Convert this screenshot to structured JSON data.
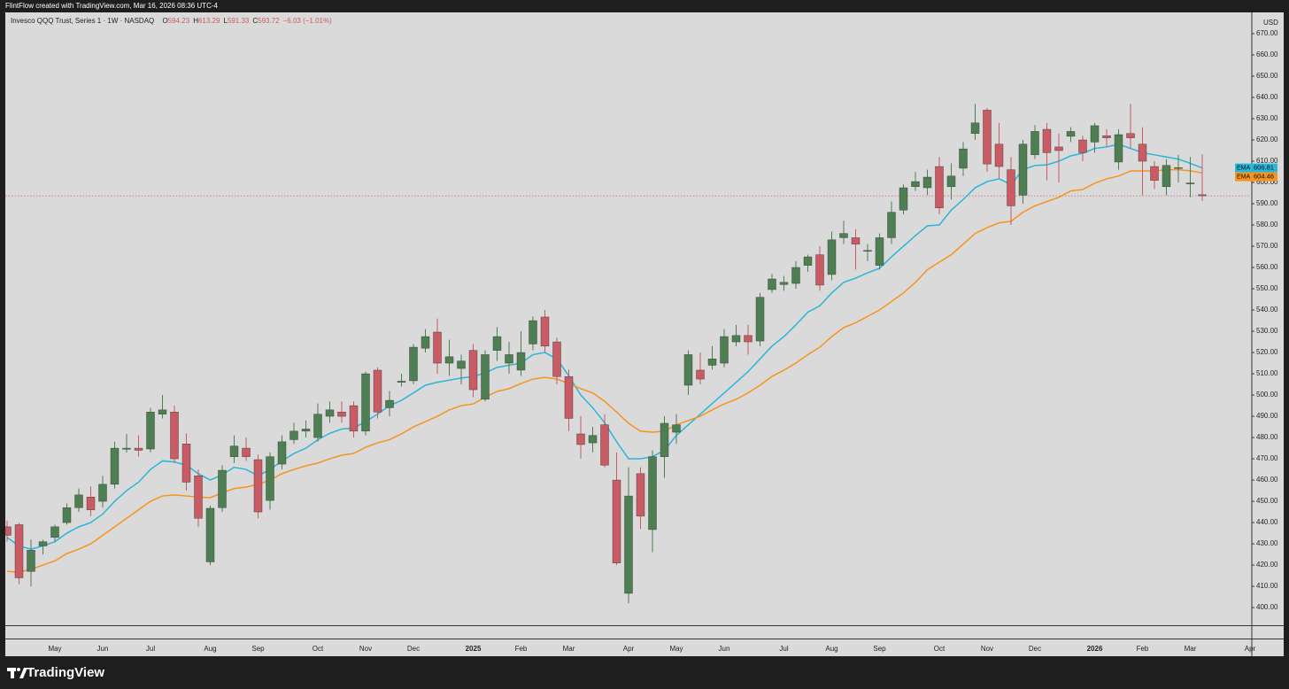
{
  "header": {
    "credit": "FlintFlow created with TradingView.com, Mar 16, 2026 08:36 UTC-4",
    "brand": "TradingView"
  },
  "chart_data": {
    "type": "candlestick",
    "title": "Invesco QQQ Trust, Series 1 · 1W · NASDAQ",
    "ohlc_prefixes": [
      "O",
      "H",
      "L",
      "C"
    ],
    "change_label": "−6.03 (−1.01%)",
    "currency": "USD",
    "up_color": "#4e7f52",
    "down_color": "#c95b64",
    "last_price_color": "#e0585e",
    "categories": [
      null,
      null,
      null,
      null,
      "May",
      null,
      null,
      null,
      "Jun",
      null,
      null,
      null,
      "Jul",
      null,
      null,
      null,
      null,
      "Aug",
      null,
      null,
      null,
      "Sep",
      null,
      null,
      null,
      null,
      "Oct",
      null,
      null,
      null,
      "Nov",
      null,
      null,
      null,
      "Dec",
      null,
      null,
      null,
      null,
      "2025",
      null,
      null,
      null,
      "Feb",
      null,
      null,
      null,
      "Mar",
      null,
      null,
      null,
      null,
      "Apr",
      null,
      null,
      null,
      "May",
      null,
      null,
      null,
      "Jun",
      null,
      null,
      null,
      null,
      "Jul",
      null,
      null,
      null,
      "Aug",
      null,
      null,
      null,
      "Sep",
      null,
      null,
      null,
      null,
      "Oct",
      null,
      null,
      null,
      "Nov",
      null,
      null,
      null,
      "Dec",
      null,
      null,
      null,
      null,
      "2026",
      null,
      null,
      null,
      "Feb",
      null,
      null,
      null,
      "Mar",
      null,
      null,
      null,
      null,
      "Apr"
    ],
    "open": [
      438,
      439,
      417,
      429,
      433,
      440,
      447,
      452,
      450,
      458,
      474.5,
      475,
      474.6,
      491,
      492,
      477,
      462,
      421.5,
      447,
      471,
      475,
      469.6,
      450.4,
      467.5,
      479,
      483,
      480,
      490,
      492,
      495,
      483,
      511.7,
      494,
      506,
      506.7,
      522,
      529.6,
      515,
      512.5,
      521,
      498,
      521,
      515,
      511.7,
      524,
      536.7,
      525,
      508.7,
      481.7,
      477.5,
      486,
      460,
      406.7,
      463,
      436.7,
      471,
      482.5,
      504.6,
      511.7,
      514,
      515,
      525,
      528,
      525.4,
      549.6,
      552,
      552.5,
      561,
      566,
      556.7,
      574,
      574,
      568,
      561,
      574,
      587,
      598,
      597.5,
      607.5,
      598,
      606.7,
      623,
      634,
      618,
      606,
      594,
      613,
      625,
      616.7,
      621.7,
      620,
      619,
      622,
      609.6,
      623,
      618,
      607.5,
      598,
      606.7,
      599.6,
      594.23,
      null,
      null,
      null,
      null
    ],
    "high": [
      441,
      440,
      432,
      432,
      439,
      449,
      456,
      457,
      462,
      478,
      481.7,
      481,
      494,
      500,
      495,
      482,
      465,
      448,
      467,
      481,
      480,
      472,
      473,
      481,
      487,
      488,
      496,
      497,
      497,
      497,
      511,
      513,
      502,
      510,
      524,
      531,
      536,
      526,
      519,
      524,
      521,
      532,
      525,
      530,
      537,
      540,
      527,
      512,
      490,
      485,
      491,
      473,
      466,
      466,
      474,
      490,
      491,
      521,
      520,
      523,
      531,
      533,
      533,
      548,
      557,
      556,
      563,
      566,
      570,
      577,
      582,
      578,
      571,
      576,
      591,
      599,
      605,
      606,
      612,
      609,
      619,
      637,
      635,
      628,
      612,
      620,
      627,
      628,
      623,
      626,
      622,
      628,
      625,
      625,
      637,
      626,
      610,
      611,
      613,
      612,
      613.29,
      null,
      null,
      null,
      null
    ],
    "low": [
      431,
      411,
      410,
      425,
      431,
      439,
      445,
      443,
      447,
      456,
      473,
      471,
      473,
      489,
      468,
      455,
      438,
      420,
      445,
      468,
      469,
      442,
      446,
      465,
      477,
      480,
      478,
      487,
      487,
      480,
      481,
      489,
      490,
      504,
      505,
      520,
      510,
      509,
      505,
      499,
      497,
      516,
      510,
      509,
      521,
      520,
      505,
      483,
      470,
      473,
      466,
      420,
      402,
      437,
      426,
      461,
      477,
      500,
      505,
      512,
      513,
      523,
      519,
      523,
      548,
      549,
      550,
      558,
      549,
      554,
      571,
      559,
      563,
      559,
      571,
      585,
      596,
      594,
      585,
      592,
      603,
      620,
      605,
      602,
      580,
      590,
      611,
      601,
      600,
      619,
      610,
      614,
      617,
      606,
      616,
      594,
      597,
      594,
      600,
      593,
      591.33,
      null,
      null,
      null,
      null
    ],
    "close": [
      434,
      414,
      427,
      431,
      438,
      447,
      453,
      446,
      458,
      475,
      475,
      474,
      492,
      493,
      470,
      459,
      442,
      446.7,
      464.6,
      476,
      471,
      445,
      471,
      478,
      483,
      484,
      491,
      493,
      490,
      483,
      510,
      492,
      497.5,
      506.5,
      522.5,
      527.5,
      515,
      518,
      516,
      502.5,
      519,
      527.5,
      519,
      520,
      535,
      523,
      508.7,
      489,
      476.7,
      481,
      467,
      421,
      452.5,
      443,
      471,
      486.7,
      486,
      519,
      507.5,
      517,
      527.5,
      528,
      525,
      546,
      554.6,
      553,
      560,
      565,
      551.7,
      573,
      576,
      571,
      568,
      574,
      586,
      597.5,
      600.4,
      602.5,
      588,
      603,
      615.8,
      628,
      608.7,
      607.5,
      589,
      618,
      624,
      614,
      615,
      624,
      614,
      626.7,
      621,
      622.5,
      621,
      610,
      601,
      608,
      607,
      599.75,
      593.72,
      null,
      null,
      null,
      null
    ],
    "series": [
      {
        "name": "EMA",
        "color": "#29b6d9",
        "values": [
          433,
          429,
          427.5,
          429,
          431,
          435,
          438,
          440,
          444,
          450,
          455,
          459,
          465,
          469,
          468.5,
          467,
          463,
          460,
          462.5,
          466,
          465,
          462,
          465,
          469,
          472.5,
          475,
          479,
          482,
          484,
          484.5,
          487.5,
          491,
          495,
          497.5,
          501,
          504.6,
          506,
          507,
          508,
          508.7,
          510.4,
          513,
          514,
          515,
          519,
          520,
          517,
          509,
          500,
          494,
          487,
          478,
          470,
          470,
          471,
          474,
          481,
          486,
          491,
          496,
          501,
          506,
          511,
          517,
          523,
          527.5,
          533,
          539,
          542,
          548,
          553,
          555,
          557.5,
          559.6,
          565,
          570,
          575,
          579.6,
          580,
          587,
          592,
          597.5,
          600.4,
          601.7,
          599,
          606,
          608,
          608.3,
          610,
          612.5,
          613.75,
          616,
          616.7,
          618,
          616,
          614,
          613,
          612,
          611,
          609,
          606.81,
          null,
          null,
          null,
          null
        ]
      },
      {
        "name": "EMA",
        "color": "#f7931e",
        "values": [
          417,
          416.7,
          418,
          420,
          422,
          425.4,
          427.5,
          430,
          434,
          438,
          442,
          446,
          450,
          452.5,
          453,
          452.5,
          452,
          451.7,
          454,
          456,
          456.7,
          458,
          460,
          463,
          465,
          466.7,
          468,
          470,
          471.7,
          472.5,
          475.4,
          477.5,
          479,
          481.7,
          485,
          487.5,
          490,
          493,
          495,
          495.8,
          499,
          501.7,
          503,
          505.4,
          507.5,
          508.3,
          507.5,
          505.4,
          503,
          501,
          497,
          492,
          486.7,
          483,
          482.5,
          483,
          486,
          488,
          490,
          493,
          495.8,
          498,
          501,
          504.6,
          508.75,
          511.7,
          515,
          519,
          522.5,
          527.5,
          531.7,
          534,
          537,
          540,
          544,
          548,
          553,
          559,
          562.5,
          566,
          571,
          576,
          578.75,
          581,
          581.7,
          586,
          589,
          591,
          593,
          596,
          596.7,
          599.6,
          601.7,
          603,
          605.4,
          605.4,
          605.4,
          606,
          606,
          605.5,
          604.46,
          null,
          null,
          null,
          null
        ]
      }
    ],
    "ylim": [
      391.7,
      680
    ],
    "yticks": [
      {
        "value": 400,
        "label": "400.00"
      },
      {
        "value": 410,
        "label": "410.00"
      },
      {
        "value": 420,
        "label": "420.00"
      },
      {
        "value": 430,
        "label": "430.00"
      },
      {
        "value": 440,
        "label": "440.00"
      },
      {
        "value": 450,
        "label": "450.00"
      },
      {
        "value": 460,
        "label": "460.00"
      },
      {
        "value": 470,
        "label": "470.00"
      },
      {
        "value": 480,
        "label": "480.00"
      },
      {
        "value": 490,
        "label": "490.00"
      },
      {
        "value": 500,
        "label": "500.00"
      },
      {
        "value": 510,
        "label": "510.00"
      },
      {
        "value": 520,
        "label": "520.00"
      },
      {
        "value": 530,
        "label": "530.00"
      },
      {
        "value": 540,
        "label": "540.00"
      },
      {
        "value": 550,
        "label": "550.00"
      },
      {
        "value": 560,
        "label": "560.00"
      },
      {
        "value": 570,
        "label": "570.00"
      },
      {
        "value": 580,
        "label": "580.00"
      },
      {
        "value": 590,
        "label": "590.00"
      },
      {
        "value": 600,
        "label": "600.00"
      },
      {
        "value": 610,
        "label": "610.00"
      },
      {
        "value": 620,
        "label": "620.00"
      },
      {
        "value": 630,
        "label": "630.00"
      },
      {
        "value": 640,
        "label": "640.00"
      },
      {
        "value": 650,
        "label": "650.00"
      },
      {
        "value": 660,
        "label": "660.00"
      },
      {
        "value": 670,
        "label": "670.00"
      }
    ],
    "grid": false
  }
}
